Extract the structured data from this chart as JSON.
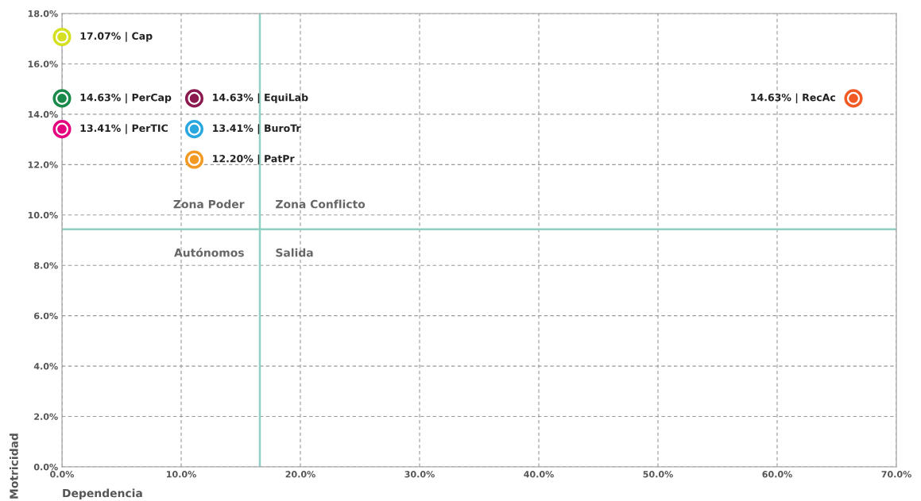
{
  "chart_data": {
    "type": "scatter",
    "xlabel": "Dependencia",
    "ylabel": "Motricidad",
    "x": [
      0,
      0,
      0,
      11.1,
      11.1,
      11.1,
      66.4
    ],
    "values": [
      17.07,
      14.63,
      13.41,
      14.63,
      13.41,
      12.2,
      14.63
    ],
    "colors": [
      "#d4e021",
      "#1a8a4a",
      "#e5007e",
      "#8b1a4f",
      "#29a8e0",
      "#f39a25",
      "#f15a24"
    ],
    "value_labels": [
      "17.07% | Cap",
      "14.63% | PerCap",
      "13.41% | PerTIC",
      "14.63% | EquiLab",
      "13.41% | BuroTr",
      "12.20% | PatPr",
      "14.63% | RecAc"
    ],
    "marker": "circle",
    "xlim": [
      0,
      70
    ],
    "xticks": [
      {
        "value": 0,
        "label": "0.0%"
      },
      {
        "value": 10,
        "label": "10.0%"
      },
      {
        "value": 20,
        "label": "20.0%"
      },
      {
        "value": 30,
        "label": "30.0%"
      },
      {
        "value": 40,
        "label": "40.0%"
      },
      {
        "value": 50,
        "label": "50.0%"
      },
      {
        "value": 60,
        "label": "60.0%"
      },
      {
        "value": 70,
        "label": "70.0%"
      }
    ],
    "ylim": [
      0,
      18
    ],
    "yticks": [
      {
        "value": 0,
        "label": "0.0%"
      },
      {
        "value": 2,
        "label": "2.0%"
      },
      {
        "value": 4,
        "label": "4.0%"
      },
      {
        "value": 6,
        "label": "6.0%"
      },
      {
        "value": 8,
        "label": "8.0%"
      },
      {
        "value": 10,
        "label": "10.0%"
      },
      {
        "value": 12,
        "label": "12.0%"
      },
      {
        "value": 14,
        "label": "14.0%"
      },
      {
        "value": 16,
        "label": "16.0%"
      },
      {
        "value": 18,
        "label": "18.0%"
      }
    ],
    "ref_lines": [
      {
        "axis": "x",
        "value": 16.6,
        "color": "#8fcfc4"
      },
      {
        "axis": "y",
        "value": 9.43,
        "color": "#8fcfc4"
      }
    ],
    "annotations": [
      "Zona Poder",
      "Zona Conflicto",
      "Autónomos",
      "Salida"
    ],
    "grid": true
  }
}
